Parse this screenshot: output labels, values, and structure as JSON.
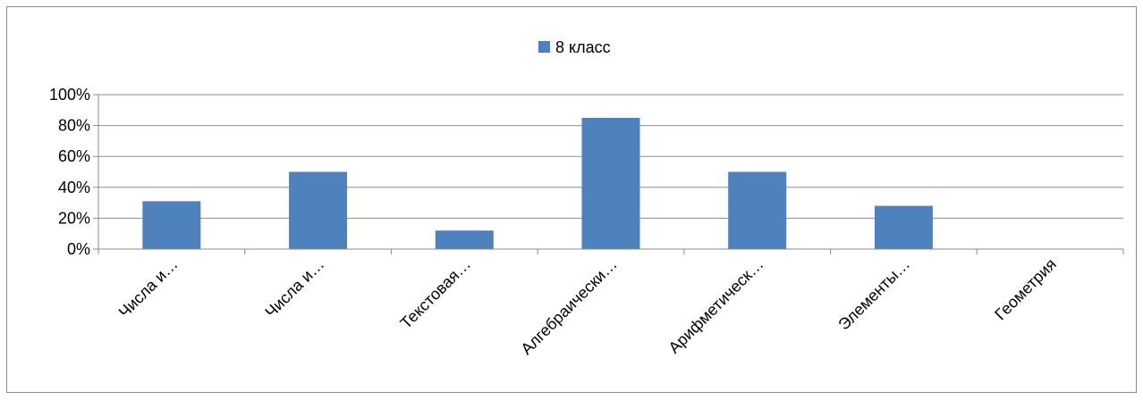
{
  "chart_data": {
    "type": "bar",
    "title": "",
    "xlabel": "",
    "ylabel": "",
    "categories": [
      "Числа и…",
      "Числа и…",
      "Текстовая…",
      "Алгебраически…",
      "Арифметическ…",
      "Элементы…",
      "Геометрия"
    ],
    "series": [
      {
        "name": "8 класс",
        "values": [
          0.31,
          0.5,
          0.12,
          0.85,
          0.5,
          0.28,
          0.0
        ],
        "color": "#4f81bd"
      }
    ],
    "ylim": [
      0,
      1
    ],
    "yticks": [
      {
        "value": 0,
        "label": "0%"
      },
      {
        "value": 0.2,
        "label": "20%"
      },
      {
        "value": 0.4,
        "label": "40%"
      },
      {
        "value": 0.6,
        "label": "60%"
      },
      {
        "value": 0.8,
        "label": "80%"
      },
      {
        "value": 1.0,
        "label": "100%"
      }
    ],
    "grid": true,
    "legend": "top-center"
  }
}
